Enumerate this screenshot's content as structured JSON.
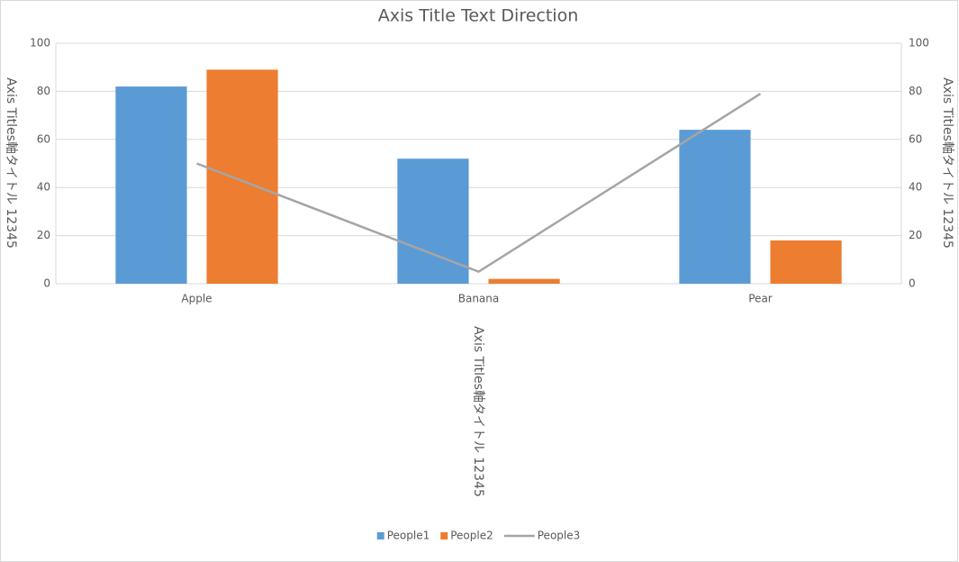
{
  "chart_data": {
    "type": "combo",
    "title": "Axis Title Text Direction",
    "categories": [
      "Apple",
      "Banana",
      "Pear"
    ],
    "series": [
      {
        "name": "People1",
        "type": "bar",
        "color": "#5b9bd5",
        "values": [
          82,
          52,
          64
        ]
      },
      {
        "name": "People2",
        "type": "bar",
        "color": "#ed7d31",
        "values": [
          89,
          2,
          18
        ]
      },
      {
        "name": "People3",
        "type": "line",
        "color": "#a5a5a5",
        "axis": "y2",
        "values": [
          50,
          5,
          79
        ]
      }
    ],
    "ylim": [
      0,
      100
    ],
    "yticks": [
      0,
      20,
      40,
      60,
      80,
      100
    ],
    "y2lim": [
      0,
      100
    ],
    "y2ticks": [
      0,
      20,
      40,
      60,
      80,
      100
    ],
    "y_label": "Axis Titles軸タイトル 12345",
    "y2_label": "Axis Titles軸タイトル 12345",
    "x_label": "Axis Titles軸タイトル 12345",
    "grid": true,
    "legend": "bottom"
  }
}
